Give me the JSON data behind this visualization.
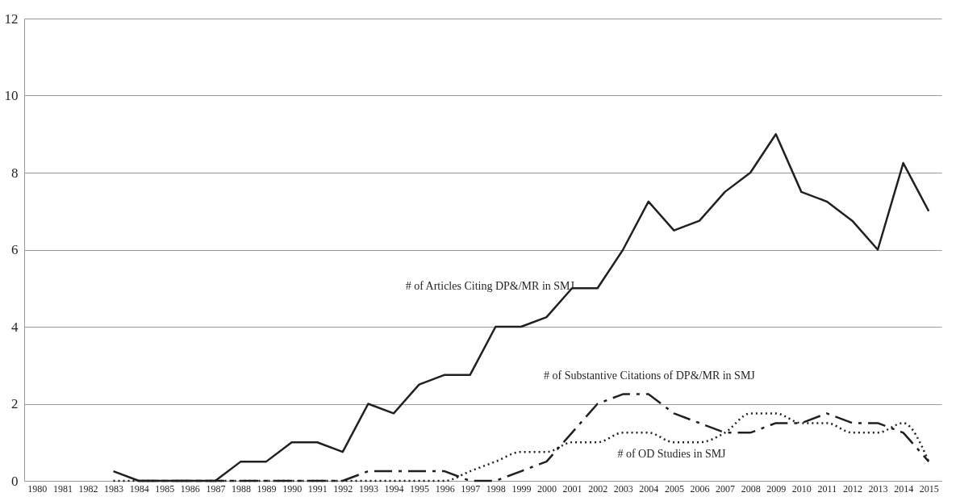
{
  "chart_data": {
    "type": "line",
    "categories": [
      "1980",
      "1981",
      "1982",
      "1983",
      "1984",
      "1985",
      "1986",
      "1987",
      "1988",
      "1989",
      "1990",
      "1991",
      "1992",
      "1993",
      "1994",
      "1995",
      "1996",
      "1997",
      "1998",
      "1999",
      "2000",
      "2001",
      "2002",
      "2003",
      "2004",
      "2005",
      "2006",
      "2007",
      "2008",
      "2009",
      "2010",
      "2011",
      "2012",
      "2013",
      "2014",
      "2015"
    ],
    "series": [
      {
        "name": "# of Articles Citing DP&/MR in SMJ",
        "color": "#231f20",
        "line_style": "solid",
        "values": [
          null,
          null,
          null,
          0.25,
          0,
          0,
          0,
          0,
          0.5,
          0.5,
          1,
          1,
          0.75,
          2,
          1.75,
          2.5,
          2.75,
          2.75,
          4,
          4,
          4.25,
          5,
          5,
          6,
          7.25,
          6.5,
          6.75,
          7.5,
          8,
          9,
          7.5,
          7.25,
          6.75,
          6,
          8.25,
          7
        ]
      },
      {
        "name": "# of Substantive Citations of DP&/MR in SMJ",
        "color": "#231f20",
        "line_style": "dashed",
        "values": [
          null,
          null,
          null,
          null,
          0,
          0,
          0,
          0,
          0,
          0,
          0,
          0,
          0,
          0.25,
          0.25,
          0.25,
          0.25,
          0,
          0,
          0.25,
          0.5,
          1.25,
          2,
          2.25,
          2.25,
          1.75,
          1.5,
          1.25,
          1.25,
          1.5,
          1.5,
          1.75,
          1.5,
          1.5,
          1.25,
          0.5
        ]
      },
      {
        "name": "# of OD Studies in SMJ",
        "color": "#231f20",
        "line_style": "dotted",
        "values": [
          null,
          null,
          null,
          0,
          0,
          0,
          0,
          0,
          0,
          0,
          0,
          0,
          0,
          0,
          0,
          0,
          0,
          0.25,
          0.5,
          0.75,
          0.75,
          1,
          1,
          1.25,
          1.25,
          1,
          1,
          1.25,
          1.75,
          1.75,
          1.5,
          1.5,
          1.25,
          1.25,
          1.5,
          0.5
        ]
      }
    ],
    "ylim": [
      0,
      12
    ],
    "yticks": [
      0,
      2,
      4,
      6,
      8,
      10,
      12
    ],
    "grid": "y"
  }
}
